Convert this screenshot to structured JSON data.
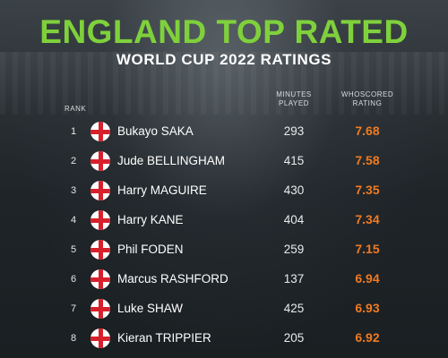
{
  "header": {
    "title": "ENGLAND TOP RATED",
    "subtitle": "WORLD CUP 2022 RATINGS"
  },
  "columns": {
    "rank": "RANK",
    "minutes_line1": "MINUTES",
    "minutes_line2": "PLAYED",
    "rating_line1": "WHOSCORED",
    "rating_line2": "RATING"
  },
  "colors": {
    "title": "#7fd13b",
    "rating": "#ef7a22",
    "flag_red": "#d8202c"
  },
  "icons": {
    "flag": "england-flag-icon"
  },
  "players": [
    {
      "rank": "1",
      "name": "Bukayo SAKA",
      "minutes": "293",
      "rating": "7.68"
    },
    {
      "rank": "2",
      "name": "Jude BELLINGHAM",
      "minutes": "415",
      "rating": "7.58"
    },
    {
      "rank": "3",
      "name": "Harry MAGUIRE",
      "minutes": "430",
      "rating": "7.35"
    },
    {
      "rank": "4",
      "name": "Harry KANE",
      "minutes": "404",
      "rating": "7.34"
    },
    {
      "rank": "5",
      "name": "Phil FODEN",
      "minutes": "259",
      "rating": "7.15"
    },
    {
      "rank": "6",
      "name": "Marcus RASHFORD",
      "minutes": "137",
      "rating": "6.94"
    },
    {
      "rank": "7",
      "name": "Luke SHAW",
      "minutes": "425",
      "rating": "6.93"
    },
    {
      "rank": "8",
      "name": "Kieran TRIPPIER",
      "minutes": "205",
      "rating": "6.92"
    }
  ]
}
